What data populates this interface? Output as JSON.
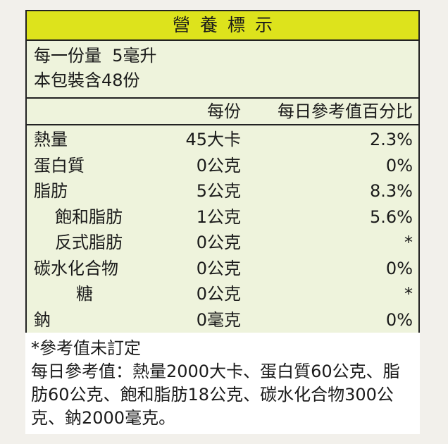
{
  "title": "營養標示",
  "serving": {
    "size": "每一份量  5毫升",
    "count": "本包裝含48份"
  },
  "header": {
    "per_serving": "每份",
    "daily_value": "每日參考值百分比"
  },
  "rows": [
    {
      "name": "熱量",
      "amount": "45大卡",
      "dv": "2.3%",
      "indent": 0
    },
    {
      "name": "蛋白質",
      "amount": "0公克",
      "dv": "0%",
      "indent": 0
    },
    {
      "name": "脂肪",
      "amount": "5公克",
      "dv": "8.3%",
      "indent": 0
    },
    {
      "name": "飽和脂肪",
      "amount": "1公克",
      "dv": "5.6%",
      "indent": 1
    },
    {
      "name": "反式脂肪",
      "amount": "0公克",
      "dv": "*",
      "indent": 1
    },
    {
      "name": "碳水化合物",
      "amount": "0公克",
      "dv": "0%",
      "indent": 0
    },
    {
      "name": "糖",
      "amount": "0公克",
      "dv": "*",
      "indent": 2
    },
    {
      "name": "鈉",
      "amount": "0毫克",
      "dv": "0%",
      "indent": 0
    }
  ],
  "footnote": {
    "note": "*參考值未訂定",
    "reference": "每日參考值：熱量2000大卡、蛋白質60公克、脂肪60公克、飽和脂肪18公克、碳水化合物300公克、鈉2000毫克。"
  },
  "colors": {
    "title_bar": "#dde31c",
    "body": "#eef3dc",
    "border": "#222222"
  }
}
